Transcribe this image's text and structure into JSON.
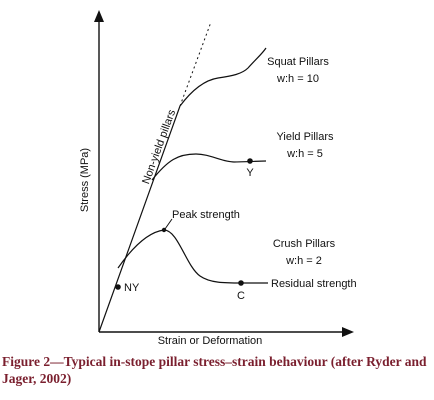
{
  "diagram": {
    "axes": {
      "y_label": "Stress (MPa)",
      "x_label": "Strain or Deformation"
    },
    "elastic_line_label": "Non-yield pillars",
    "curves": [
      {
        "id": "squat",
        "label_line1": "Squat Pillars",
        "label_line2": "w:h = 10"
      },
      {
        "id": "yield",
        "label_line1": "Yield Pillars",
        "label_line2": "w:h = 5",
        "point_label": "Y"
      },
      {
        "id": "crush",
        "label_line1": "Crush Pillars",
        "label_line2": "w:h = 2",
        "point_label": "C"
      }
    ],
    "annotations": {
      "peak_strength": "Peak strength",
      "residual_strength": "Residual strength",
      "ny_point": "NY"
    }
  },
  "caption": "Figure 2—Typical in-stope pillar stress–strain behaviour (after Ryder and Jager, 2002)"
}
